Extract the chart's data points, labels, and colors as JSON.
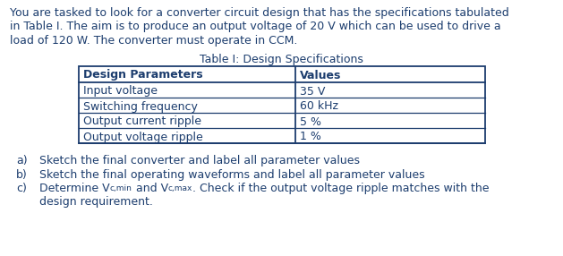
{
  "intro_lines": [
    "You are tasked to look for a converter circuit design that has the specifications tabulated",
    "in Table I. The aim is to produce an output voltage of 20 V which can be used to drive a",
    "load of 120 W. The converter must operate in CCM."
  ],
  "table_title": "Table I: Design Specifications",
  "table_headers": [
    "Design Parameters",
    "Values"
  ],
  "table_rows": [
    [
      "Input voltage",
      "35 V"
    ],
    [
      "Switching frequency",
      "60 kHz"
    ],
    [
      "Output current ripple",
      "5 %"
    ],
    [
      "Output voltage ripple",
      "1 %"
    ]
  ],
  "q_a": [
    "a)",
    "Sketch the final converter and label all parameter values"
  ],
  "q_b": [
    "b)",
    "Sketch the final operating waveforms and label all parameter values"
  ],
  "q_c_label": "c)",
  "q_c_line1_pre": "Determine V",
  "q_c_line1_sub1": "c,min",
  "q_c_line1_mid": " and V",
  "q_c_line1_sub2": "c,max",
  "q_c_line1_post": ". Check if the output voltage ripple matches with the",
  "q_c_line2": "design requirement.",
  "bg_color": "#ffffff",
  "text_color": "#1c3d6e",
  "table_border_color": "#1c3d6e",
  "fs": 9.0
}
